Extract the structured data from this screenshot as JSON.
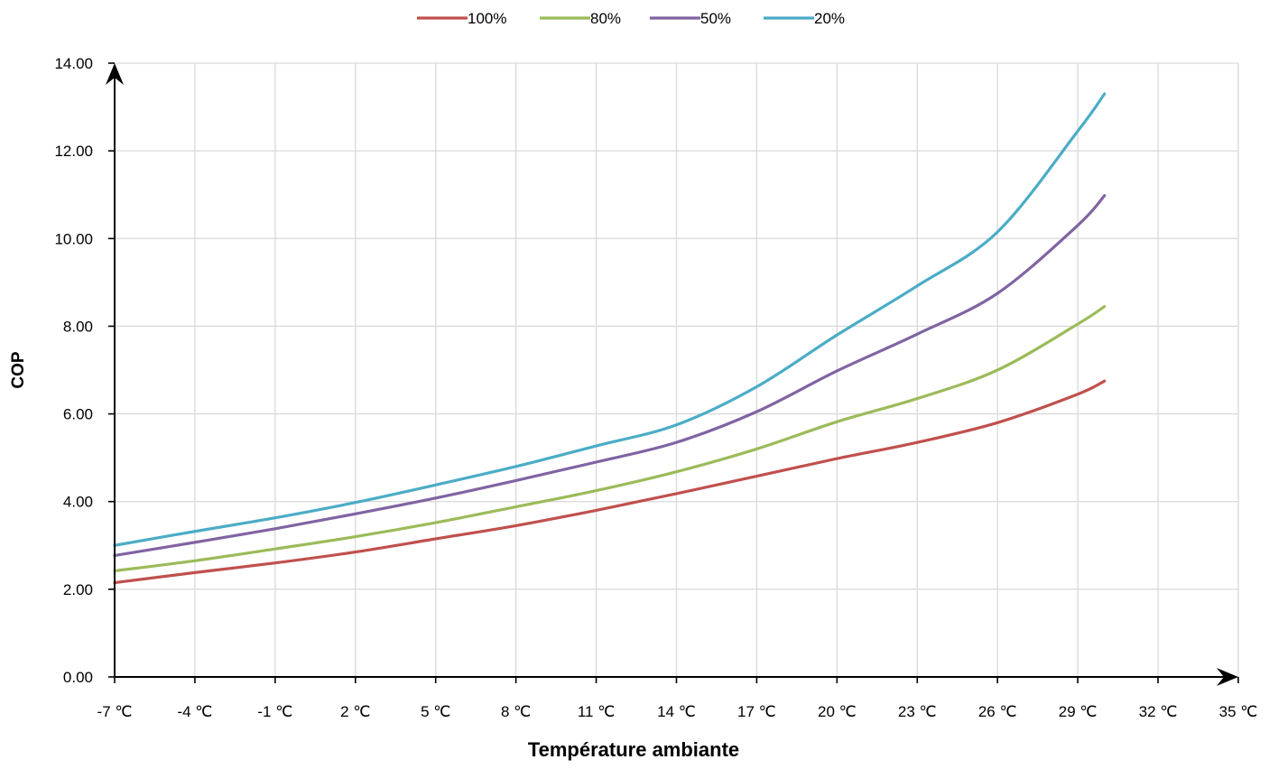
{
  "chart_data": {
    "type": "line",
    "title": "",
    "xlabel": "Température ambiante",
    "ylabel": "COP",
    "x_tick_labels": [
      "-7 ℃",
      "-4 ℃",
      "-1 ℃",
      "2 ℃",
      "5 ℃",
      "8 ℃",
      "11 ℃",
      "14 ℃",
      "17 ℃",
      "20 ℃",
      "23 ℃",
      "26 ℃",
      "29 ℃",
      "32 ℃",
      "35 ℃"
    ],
    "y_tick_labels": [
      "0.00",
      "2.00",
      "4.00",
      "6.00",
      "8.00",
      "10.00",
      "12.00",
      "14.00"
    ],
    "xlim": [
      -7,
      35
    ],
    "ylim": [
      0,
      14
    ],
    "grid": true,
    "legend_position": "top",
    "x": [
      -7,
      -4,
      -1,
      2,
      5,
      8,
      11,
      14,
      17,
      20,
      23,
      26,
      29,
      30
    ],
    "series": [
      {
        "name": "100%",
        "color": "#C0504D",
        "values": [
          2.15,
          2.38,
          2.6,
          2.85,
          3.15,
          3.45,
          3.8,
          4.18,
          4.58,
          4.98,
          5.35,
          5.8,
          6.45,
          6.75
        ]
      },
      {
        "name": "80%",
        "color": "#9BBB59",
        "values": [
          2.42,
          2.65,
          2.92,
          3.2,
          3.52,
          3.88,
          4.25,
          4.68,
          5.2,
          5.82,
          6.35,
          7.0,
          8.05,
          8.45
        ]
      },
      {
        "name": "50%",
        "color": "#8064A2",
        "values": [
          2.77,
          3.07,
          3.38,
          3.72,
          4.08,
          4.48,
          4.9,
          5.35,
          6.05,
          6.98,
          7.82,
          8.75,
          10.3,
          10.98
        ]
      },
      {
        "name": "20%",
        "color": "#4BACC6",
        "values": [
          3.0,
          3.32,
          3.63,
          3.98,
          4.38,
          4.8,
          5.27,
          5.75,
          6.62,
          7.8,
          8.92,
          10.15,
          12.45,
          13.3
        ]
      }
    ]
  }
}
